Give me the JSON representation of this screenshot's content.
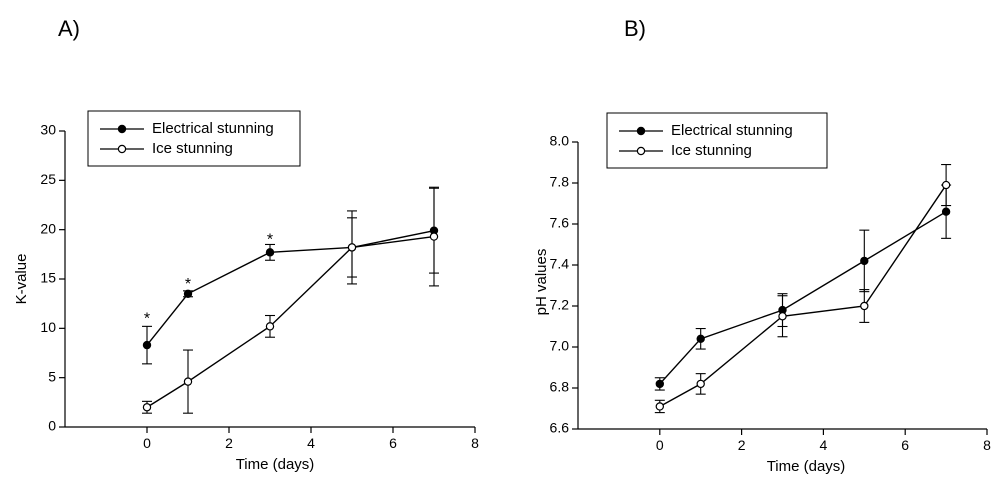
{
  "chart_data": [
    {
      "panel_label": "A)",
      "type": "line",
      "xlabel": "Time (days)",
      "ylabel": "K-value",
      "xlim": [
        -2,
        8
      ],
      "ylim": [
        0,
        30
      ],
      "xticks": [
        0,
        2,
        4,
        6,
        8
      ],
      "yticks": [
        0,
        5,
        10,
        15,
        20,
        25,
        30
      ],
      "legend_position": "top-left",
      "grid": false,
      "series": [
        {
          "name": "Electrical stunning",
          "marker": "filled",
          "x": [
            0,
            1,
            3,
            5,
            7
          ],
          "y": [
            8.3,
            13.5,
            17.7,
            18.2,
            19.9
          ],
          "err": [
            1.9,
            0.3,
            0.8,
            3.7,
            4.3
          ]
        },
        {
          "name": "Ice stunning",
          "marker": "open",
          "x": [
            0,
            1,
            3,
            5,
            7
          ],
          "y": [
            2.0,
            4.6,
            10.2,
            18.2,
            19.3
          ],
          "err": [
            0.6,
            3.2,
            1.1,
            3.0,
            5.0
          ]
        }
      ],
      "annotations": [
        {
          "text": "*",
          "x": 0,
          "y": 11.2
        },
        {
          "text": "*",
          "x": 1,
          "y": 14.7
        },
        {
          "text": "*",
          "x": 3,
          "y": 19.2
        }
      ]
    },
    {
      "panel_label": "B)",
      "type": "line",
      "xlabel": "Time (days)",
      "ylabel": "pH values",
      "xlim": [
        -2,
        8
      ],
      "ylim": [
        6.6,
        8.0
      ],
      "xticks": [
        0,
        2,
        4,
        6,
        8
      ],
      "yticks": [
        6.6,
        6.8,
        7.0,
        7.2,
        7.4,
        7.6,
        7.8,
        8.0
      ],
      "legend_position": "top-left",
      "grid": false,
      "series": [
        {
          "name": "Electrical stunning",
          "marker": "filled",
          "x": [
            0,
            1,
            3,
            5,
            7
          ],
          "y": [
            6.82,
            7.04,
            7.18,
            7.42,
            7.66
          ],
          "err": [
            0.03,
            0.05,
            0.08,
            0.15,
            0.13
          ]
        },
        {
          "name": "Ice stunning",
          "marker": "open",
          "x": [
            0,
            1,
            3,
            5,
            7
          ],
          "y": [
            6.71,
            6.82,
            7.15,
            7.2,
            7.79
          ],
          "err": [
            0.03,
            0.05,
            0.1,
            0.08,
            0.1
          ]
        }
      ],
      "annotations": []
    }
  ]
}
